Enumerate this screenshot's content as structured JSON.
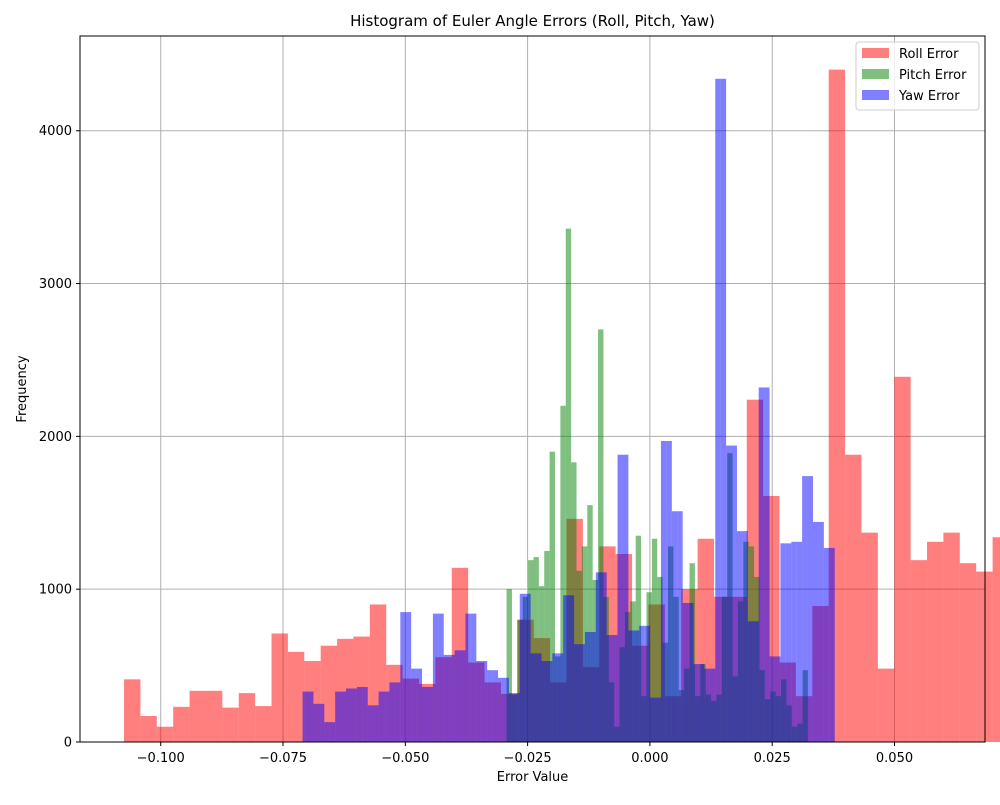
{
  "chart_data": {
    "type": "histogram",
    "title": "Histogram of Euler Angle Errors (Roll, Pitch, Yaw)",
    "xlabel": "Error Value",
    "ylabel": "Frequency",
    "xlim": [
      -0.1165,
      0.0685
    ],
    "ylim": [
      0,
      4620
    ],
    "x_ticks": [
      -0.1,
      -0.075,
      -0.05,
      -0.025,
      0.0,
      0.025,
      0.05
    ],
    "x_tick_labels": [
      "−0.100",
      "−0.075",
      "−0.050",
      "−0.025",
      "0.000",
      "0.025",
      "0.050"
    ],
    "y_ticks": [
      0,
      1000,
      2000,
      3000,
      4000
    ],
    "y_tick_labels": [
      "0",
      "1000",
      "2000",
      "3000",
      "4000"
    ],
    "grid": true,
    "legend_position": "top-right",
    "series": [
      {
        "name": "Roll Error",
        "color": "#ff0000",
        "alpha": 0.5,
        "bin_start": -0.1075,
        "bin_width": 0.00335,
        "values": [
          410,
          170,
          100,
          230,
          335,
          335,
          225,
          320,
          235,
          710,
          590,
          530,
          630,
          675,
          690,
          900,
          505,
          415,
          380,
          555,
          1140,
          520,
          390,
          315,
          800,
          680,
          390,
          1460,
          490,
          1280,
          1230,
          630,
          900,
          300,
          1000,
          1330,
          950,
          950,
          2240,
          1610,
          520,
          300,
          890,
          4400,
          1880,
          1370,
          480,
          2390,
          1190,
          1310,
          1370,
          1170,
          1115,
          1340
        ]
      },
      {
        "name": "Pitch Error",
        "color": "#008000",
        "alpha": 0.5,
        "bin_start": -0.0293,
        "bin_width": 0.0011,
        "values": [
          1000,
          310,
          800,
          950,
          1190,
          1210,
          1020,
          1250,
          1900,
          560,
          2200,
          3360,
          1830,
          1120,
          1280,
          1550,
          1060,
          2700,
          950,
          390,
          100,
          620,
          850,
          920,
          1350,
          300,
          980,
          1330,
          1080,
          650,
          1280,
          950,
          340,
          480,
          1170,
          300,
          510,
          310,
          270,
          310,
          950,
          1890,
          430,
          920,
          1310,
          1280,
          1080,
          470,
          280,
          330,
          300,
          410,
          240,
          100,
          120,
          470
        ]
      },
      {
        "name": "Yaw Error",
        "color": "#0000ff",
        "alpha": 0.5,
        "bin_start": -0.071,
        "bin_width": 0.00111,
        "values": [
          330,
          330,
          250,
          250,
          130,
          130,
          330,
          330,
          350,
          350,
          360,
          360,
          240,
          240,
          330,
          330,
          390,
          390,
          850,
          850,
          480,
          480,
          360,
          360,
          840,
          840,
          570,
          570,
          600,
          600,
          840,
          840,
          530,
          530,
          470,
          470,
          420,
          420,
          320,
          320,
          970,
          970,
          580,
          580,
          530,
          530,
          580,
          580,
          960,
          960,
          640,
          640,
          720,
          720,
          1110,
          1110,
          700,
          700,
          1880,
          1880,
          730,
          730,
          760,
          760,
          290,
          290,
          1970,
          1970,
          1510,
          1510,
          910,
          910,
          510,
          510,
          480,
          480,
          4340,
          4340,
          1940,
          1940,
          1380,
          1380,
          790,
          790,
          2320,
          2320,
          560,
          560,
          1300,
          1300,
          1310,
          1310,
          1740,
          1740,
          1440,
          1440,
          1270,
          1270
        ]
      }
    ]
  }
}
